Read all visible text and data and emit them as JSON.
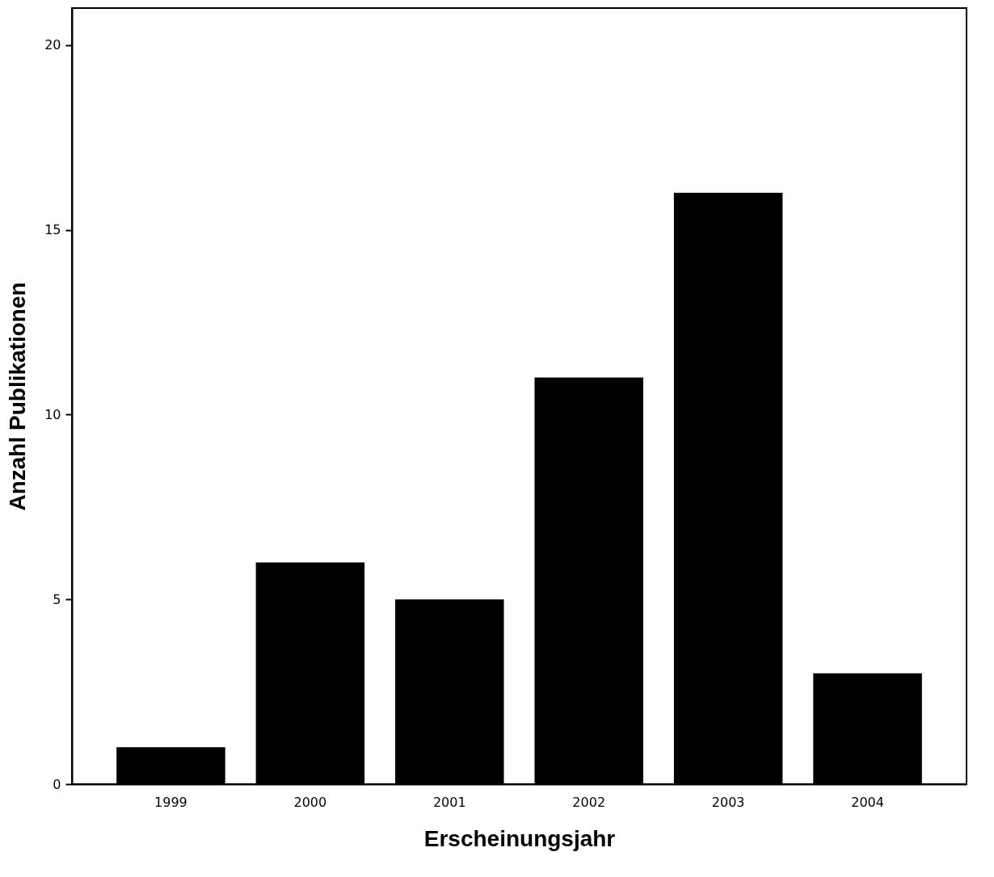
{
  "chart_data": {
    "type": "bar",
    "xlabel": "Erscheinungsjahr",
    "ylabel": "Anzahl Publikationen",
    "categories": [
      "1999",
      "2000",
      "2001",
      "2002",
      "2003",
      "2004"
    ],
    "values": [
      1,
      6,
      5,
      11,
      16,
      3
    ],
    "color": "#000000",
    "ylim": [
      0,
      21
    ],
    "yticks": [
      0,
      5,
      10,
      15,
      20
    ],
    "grid": false
  }
}
